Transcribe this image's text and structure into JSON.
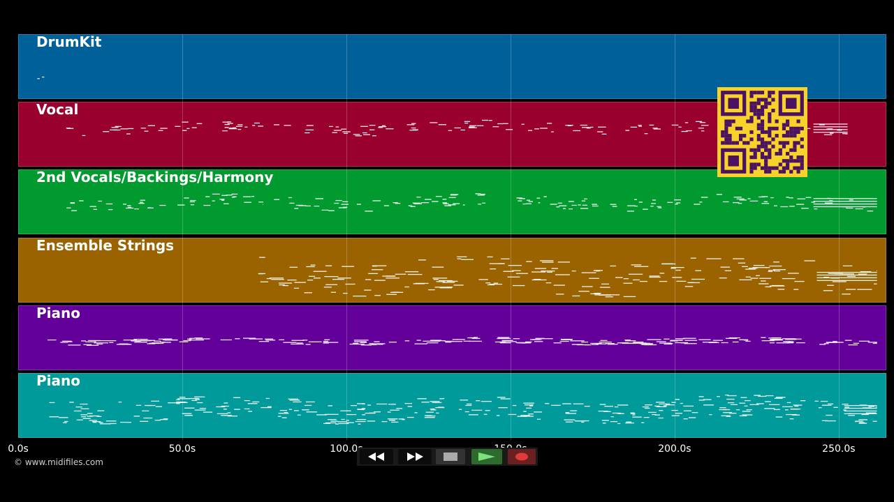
{
  "tracks": [
    {
      "name": "DrumKit",
      "color": "#00609a"
    },
    {
      "name": "Vocal",
      "color": "#99002e"
    },
    {
      "name": "2nd Vocals/Backings/Harmony",
      "color": "#009a2e"
    },
    {
      "name": "Ensemble Strings",
      "color": "#9a6300"
    },
    {
      "name": "Piano",
      "color": "#63009a"
    },
    {
      "name": "Piano",
      "color": "#009a9a"
    }
  ],
  "timeline": {
    "max_seconds": 264.5,
    "ticks": [
      {
        "value": 0,
        "label": "0.0s"
      },
      {
        "value": 50,
        "label": "50.0s"
      },
      {
        "value": 100,
        "label": "100.0s"
      },
      {
        "value": 150,
        "label": "150.0s"
      },
      {
        "value": 200,
        "label": "200.0s"
      },
      {
        "value": 250,
        "label": "250.0s"
      }
    ]
  },
  "copyright": "© www.midifiles.com",
  "qr": {
    "icon": "qr-code-icon",
    "background": "#f6d22a",
    "foreground": "#4a1260"
  },
  "controls": [
    {
      "name": "rewind-button",
      "icon": "rewind-icon"
    },
    {
      "name": "fast-forward-button",
      "icon": "fast-forward-icon"
    },
    {
      "name": "stop-button",
      "icon": "stop-icon"
    },
    {
      "name": "play-button",
      "icon": "play-icon"
    },
    {
      "name": "record-button",
      "icon": "record-icon"
    }
  ]
}
